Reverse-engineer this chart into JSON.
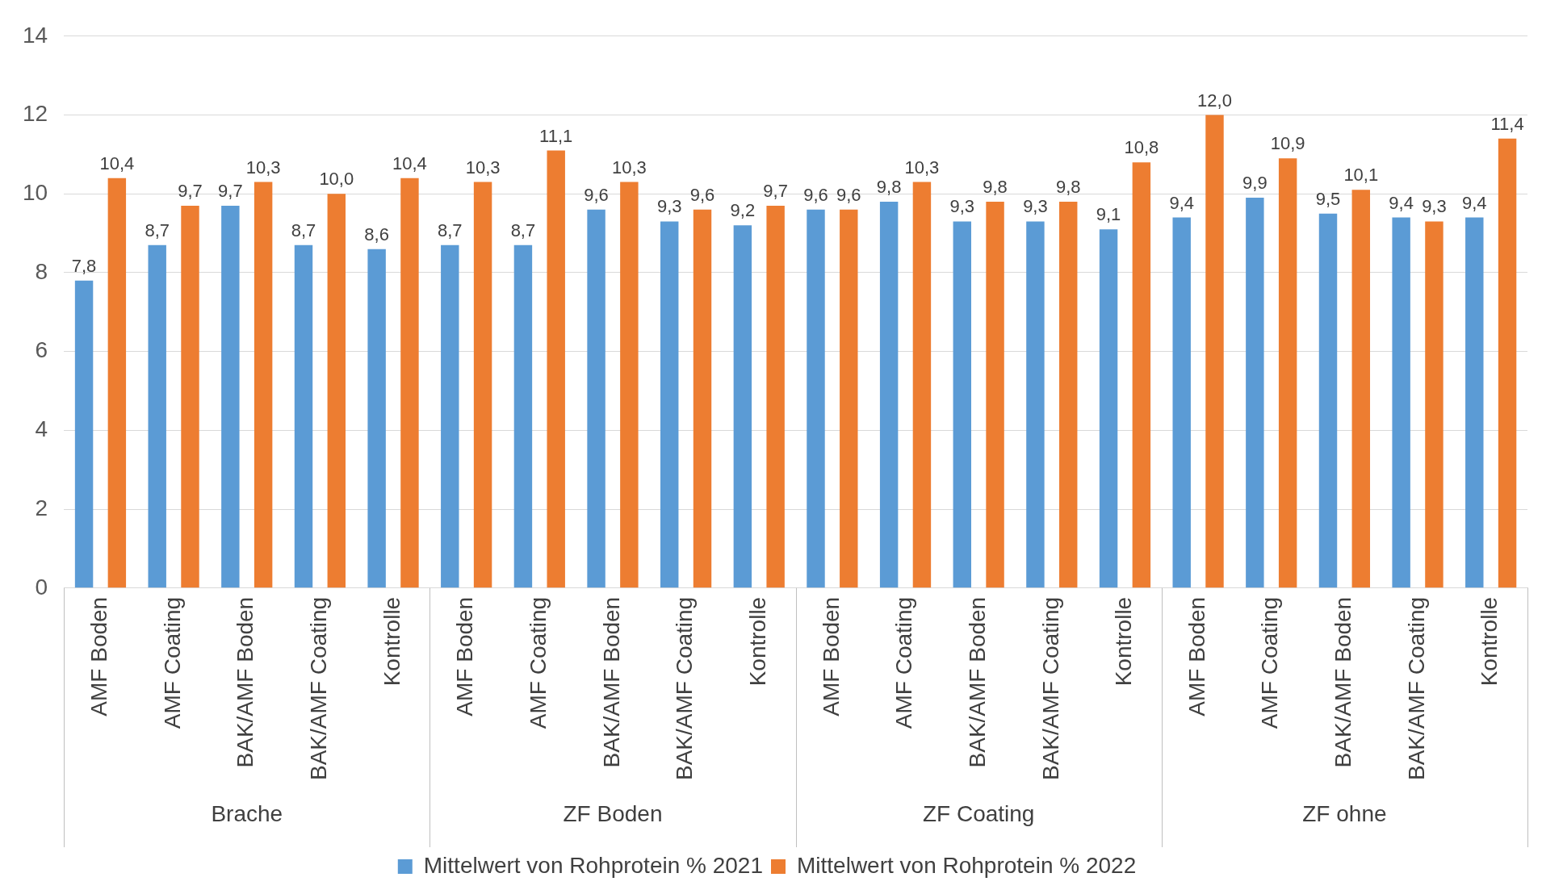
{
  "chart_data": {
    "type": "bar",
    "categories": [
      "AMF Boden",
      "AMF Coating",
      "BAK/AMF Boden",
      "BAK/AMF Coating",
      "Kontrolle",
      "AMF Boden",
      "AMF Coating",
      "BAK/AMF Boden",
      "BAK/AMF Coating",
      "Kontrolle",
      "AMF Boden",
      "AMF Coating",
      "BAK/AMF Boden",
      "BAK/AMF Coating",
      "Kontrolle",
      "AMF Boden",
      "AMF Coating",
      "BAK/AMF Boden",
      "BAK/AMF Coating",
      "Kontrolle"
    ],
    "series": [
      {
        "name": "Mittelwert von Rohprotein % 2021",
        "color": "#5b9bd5",
        "values": [
          7.8,
          8.7,
          9.7,
          8.7,
          8.6,
          8.7,
          8.7,
          9.6,
          9.3,
          9.2,
          9.6,
          9.8,
          9.3,
          9.3,
          9.1,
          9.4,
          9.9,
          9.5,
          9.4,
          9.4
        ],
        "value_labels": [
          "7,8",
          "8,7",
          "9,7",
          "8,7",
          "8,6",
          "8,7",
          "8,7",
          "9,6",
          "9,3",
          "9,2",
          "9,6",
          "9,8",
          "9,3",
          "9,3",
          "9,1",
          "9,4",
          "9,9",
          "9,5",
          "9,4",
          "9,4"
        ]
      },
      {
        "name": "Mittelwert von Rohprotein % 2022",
        "color": "#ed7d31",
        "values": [
          10.4,
          9.7,
          10.3,
          10.0,
          10.4,
          10.3,
          11.1,
          10.3,
          9.6,
          9.7,
          9.6,
          10.3,
          9.8,
          9.8,
          10.8,
          12.0,
          10.9,
          10.1,
          9.3,
          11.4
        ],
        "value_labels": [
          "10,4",
          "9,7",
          "10,3",
          "10,0",
          "10,4",
          "10,3",
          "11,1",
          "10,3",
          "9,6",
          "9,7",
          "9,6",
          "10,3",
          "9,8",
          "9,8",
          "10,8",
          "12,0",
          "10,9",
          "10,1",
          "9,3",
          "11,4"
        ]
      }
    ],
    "annotations": [
      "Brache",
      "ZF Boden",
      "ZF Coating",
      "ZF ohne"
    ],
    "ylim": [
      0,
      14
    ],
    "yticks": [
      0,
      2,
      4,
      6,
      8,
      10,
      12,
      14
    ],
    "grid": "y",
    "legend": "bottom"
  }
}
